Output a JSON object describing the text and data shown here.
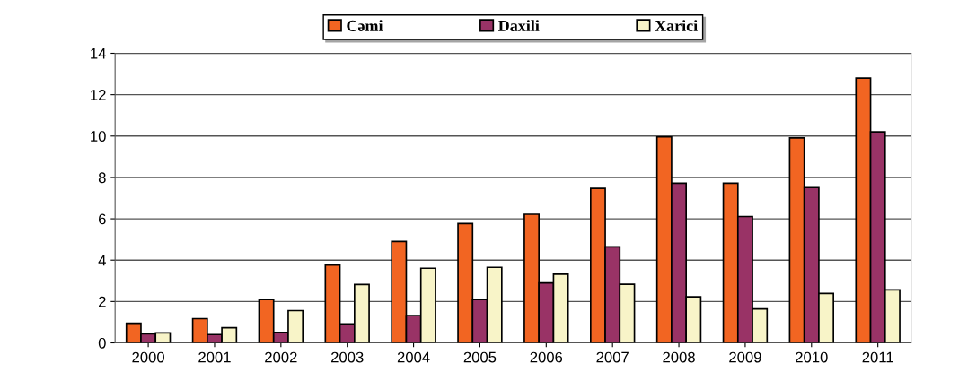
{
  "chart_data": {
    "type": "bar",
    "categories": [
      "2000",
      "2001",
      "2002",
      "2003",
      "2004",
      "2005",
      "2006",
      "2007",
      "2008",
      "2009",
      "2010",
      "2011"
    ],
    "series": [
      {
        "name": "Cəmi",
        "color": "#f26522",
        "values": [
          0.95,
          1.17,
          2.09,
          3.76,
          4.9,
          5.77,
          6.22,
          7.47,
          9.96,
          7.72,
          9.91,
          12.8
        ]
      },
      {
        "name": "Daxili",
        "color": "#993366",
        "values": [
          0.44,
          0.4,
          0.51,
          0.92,
          1.32,
          2.1,
          2.9,
          4.64,
          7.72,
          6.11,
          7.51,
          10.2
        ]
      },
      {
        "name": "Xarici",
        "color": "#f8f4c8",
        "values": [
          0.48,
          0.73,
          1.56,
          2.82,
          3.61,
          3.65,
          3.32,
          2.83,
          2.23,
          1.64,
          2.39,
          2.56
        ]
      }
    ],
    "ylim": [
      0,
      14
    ],
    "yticks": [
      0,
      2,
      4,
      6,
      8,
      10,
      12,
      14
    ],
    "grid": "y",
    "legend": "top"
  }
}
